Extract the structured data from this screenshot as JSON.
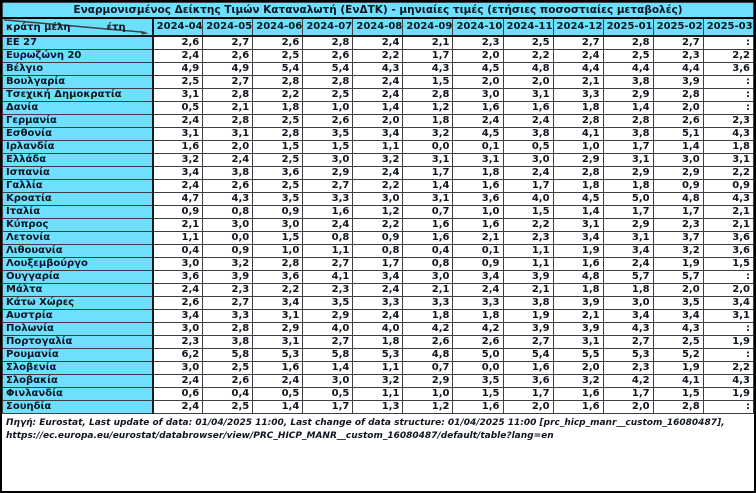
{
  "title": "Εναρμονισμένος Δείκτης Τιμών Καταναλωτή (ΕνΔΤΚ) - μηνιαίες τιμές (ετήσιες ποσοστιαίες μεταβολές)",
  "header": {
    "row_label": "κράτη μέλη",
    "col_label": "έτη"
  },
  "colors": {
    "header_bg": "#6fdfff",
    "cell_bg": "#ffffff",
    "border": "#3f3f3f",
    "text": "#10151f"
  },
  "table": {
    "columns": [
      "2024-04",
      "2024-05",
      "2024-06",
      "2024-07",
      "2024-08",
      "2024-09",
      "2024-10",
      "2024-11",
      "2024-12",
      "2025-01",
      "2025-02",
      "2025-03"
    ],
    "rows": [
      {
        "name": "EE 27",
        "values": [
          "2,6",
          "2,7",
          "2,6",
          "2,8",
          "2,4",
          "2,1",
          "2,3",
          "2,5",
          "2,7",
          "2,8",
          "2,7",
          ":"
        ]
      },
      {
        "name": "Ευρωζώνη 20",
        "values": [
          "2,4",
          "2,6",
          "2,5",
          "2,6",
          "2,2",
          "1,7",
          "2,0",
          "2,2",
          "2,4",
          "2,5",
          "2,3",
          "2,2"
        ]
      },
      {
        "name": "Βέλγιο",
        "values": [
          "4,9",
          "4,9",
          "5,4",
          "5,4",
          "4,3",
          "4,3",
          "4,5",
          "4,8",
          "4,4",
          "4,4",
          "4,4",
          "3,6"
        ]
      },
      {
        "name": "Βουλγαρία",
        "values": [
          "2,5",
          "2,7",
          "2,8",
          "2,8",
          "2,4",
          "1,5",
          "2,0",
          "2,0",
          "2,1",
          "3,8",
          "3,9",
          ":"
        ]
      },
      {
        "name": "Τσεχική Δημοκρατία",
        "values": [
          "3,1",
          "2,8",
          "2,2",
          "2,5",
          "2,4",
          "2,8",
          "3,0",
          "3,1",
          "3,3",
          "2,9",
          "2,8",
          ":"
        ]
      },
      {
        "name": "Δανία",
        "values": [
          "0,5",
          "2,1",
          "1,8",
          "1,0",
          "1,4",
          "1,2",
          "1,6",
          "1,6",
          "1,8",
          "1,4",
          "2,0",
          ":"
        ]
      },
      {
        "name": "Γερμανία",
        "values": [
          "2,4",
          "2,8",
          "2,5",
          "2,6",
          "2,0",
          "1,8",
          "2,4",
          "2,4",
          "2,8",
          "2,8",
          "2,6",
          "2,3"
        ]
      },
      {
        "name": "Εσθονία",
        "values": [
          "3,1",
          "3,1",
          "2,8",
          "3,5",
          "3,4",
          "3,2",
          "4,5",
          "3,8",
          "4,1",
          "3,8",
          "5,1",
          "4,3"
        ]
      },
      {
        "name": "Ιρλανδία",
        "values": [
          "1,6",
          "2,0",
          "1,5",
          "1,5",
          "1,1",
          "0,0",
          "0,1",
          "0,5",
          "1,0",
          "1,7",
          "1,4",
          "1,8"
        ]
      },
      {
        "name": "Ελλάδα",
        "values": [
          "3,2",
          "2,4",
          "2,5",
          "3,0",
          "3,2",
          "3,1",
          "3,1",
          "3,0",
          "2,9",
          "3,1",
          "3,0",
          "3,1"
        ]
      },
      {
        "name": "Ισπανία",
        "values": [
          "3,4",
          "3,8",
          "3,6",
          "2,9",
          "2,4",
          "1,7",
          "1,8",
          "2,4",
          "2,8",
          "2,9",
          "2,9",
          "2,2"
        ]
      },
      {
        "name": "Γαλλία",
        "values": [
          "2,4",
          "2,6",
          "2,5",
          "2,7",
          "2,2",
          "1,4",
          "1,6",
          "1,7",
          "1,8",
          "1,8",
          "0,9",
          "0,9"
        ]
      },
      {
        "name": "Κροατία",
        "values": [
          "4,7",
          "4,3",
          "3,5",
          "3,3",
          "3,0",
          "3,1",
          "3,6",
          "4,0",
          "4,5",
          "5,0",
          "4,8",
          "4,3"
        ]
      },
      {
        "name": "Ιταλία",
        "values": [
          "0,9",
          "0,8",
          "0,9",
          "1,6",
          "1,2",
          "0,7",
          "1,0",
          "1,5",
          "1,4",
          "1,7",
          "1,7",
          "2,1"
        ]
      },
      {
        "name": "Κύπρος",
        "values": [
          "2,1",
          "3,0",
          "3,0",
          "2,4",
          "2,2",
          "1,6",
          "1,6",
          "2,2",
          "3,1",
          "2,9",
          "2,3",
          "2,1"
        ]
      },
      {
        "name": "Λετονία",
        "values": [
          "1,1",
          "0,0",
          "1,5",
          "0,8",
          "0,9",
          "1,6",
          "2,1",
          "2,3",
          "3,4",
          "3,1",
          "3,7",
          "3,6"
        ]
      },
      {
        "name": "Λιθουανία",
        "values": [
          "0,4",
          "0,9",
          "1,0",
          "1,1",
          "0,8",
          "0,4",
          "0,1",
          "1,1",
          "1,9",
          "3,4",
          "3,2",
          "3,6"
        ]
      },
      {
        "name": "Λουξεμβούργο",
        "values": [
          "3,0",
          "3,2",
          "2,8",
          "2,7",
          "1,7",
          "0,8",
          "0,9",
          "1,1",
          "1,6",
          "2,4",
          "1,9",
          "1,5"
        ]
      },
      {
        "name": "Ουγγαρία",
        "values": [
          "3,6",
          "3,9",
          "3,6",
          "4,1",
          "3,4",
          "3,0",
          "3,4",
          "3,9",
          "4,8",
          "5,7",
          "5,7",
          ":"
        ]
      },
      {
        "name": "Μάλτα",
        "values": [
          "2,4",
          "2,3",
          "2,2",
          "2,3",
          "2,4",
          "2,1",
          "2,4",
          "2,1",
          "1,8",
          "1,8",
          "2,0",
          "2,0"
        ]
      },
      {
        "name": "Κάτω Χώρες",
        "values": [
          "2,6",
          "2,7",
          "3,4",
          "3,5",
          "3,3",
          "3,3",
          "3,3",
          "3,8",
          "3,9",
          "3,0",
          "3,5",
          "3,4"
        ]
      },
      {
        "name": "Αυστρία",
        "values": [
          "3,4",
          "3,3",
          "3,1",
          "2,9",
          "2,4",
          "1,8",
          "1,8",
          "1,9",
          "2,1",
          "3,4",
          "3,4",
          "3,1"
        ]
      },
      {
        "name": "Πολωνία",
        "values": [
          "3,0",
          "2,8",
          "2,9",
          "4,0",
          "4,0",
          "4,2",
          "4,2",
          "3,9",
          "3,9",
          "4,3",
          "4,3",
          ":"
        ]
      },
      {
        "name": "Πορτογαλία",
        "values": [
          "2,3",
          "3,8",
          "3,1",
          "2,7",
          "1,8",
          "2,6",
          "2,6",
          "2,7",
          "3,1",
          "2,7",
          "2,5",
          "1,9"
        ]
      },
      {
        "name": "Ρουμανία",
        "values": [
          "6,2",
          "5,8",
          "5,3",
          "5,8",
          "5,3",
          "4,8",
          "5,0",
          "5,4",
          "5,5",
          "5,3",
          "5,2",
          ":"
        ]
      },
      {
        "name": "Σλοβενία",
        "values": [
          "3,0",
          "2,5",
          "1,6",
          "1,4",
          "1,1",
          "0,7",
          "0,0",
          "1,6",
          "2,0",
          "2,3",
          "1,9",
          "2,2"
        ]
      },
      {
        "name": "Σλοβακία",
        "values": [
          "2,4",
          "2,6",
          "2,4",
          "3,0",
          "3,2",
          "2,9",
          "3,5",
          "3,6",
          "3,2",
          "4,2",
          "4,1",
          "4,3"
        ]
      },
      {
        "name": "Φινλανδία",
        "values": [
          "0,6",
          "0,4",
          "0,5",
          "0,5",
          "1,1",
          "1,0",
          "1,5",
          "1,7",
          "1,6",
          "1,7",
          "1,5",
          "1,9"
        ]
      },
      {
        "name": "Σουηδία",
        "values": [
          "2,4",
          "2,5",
          "1,4",
          "1,7",
          "1,3",
          "1,2",
          "1,6",
          "2,0",
          "1,6",
          "2,0",
          "2,8",
          ":"
        ]
      }
    ]
  },
  "footer": {
    "line1": "Πηγή: Eurostat, Last update of data: 01/04/2025 11:00, Last change of data structure: 01/04/2025 11:00 [prc_hicp_manr__custom_16080487],",
    "line2": "https://ec.europa.eu/eurostat/databrowser/view/PRC_HICP_MANR__custom_16080487/default/table?lang=en"
  }
}
